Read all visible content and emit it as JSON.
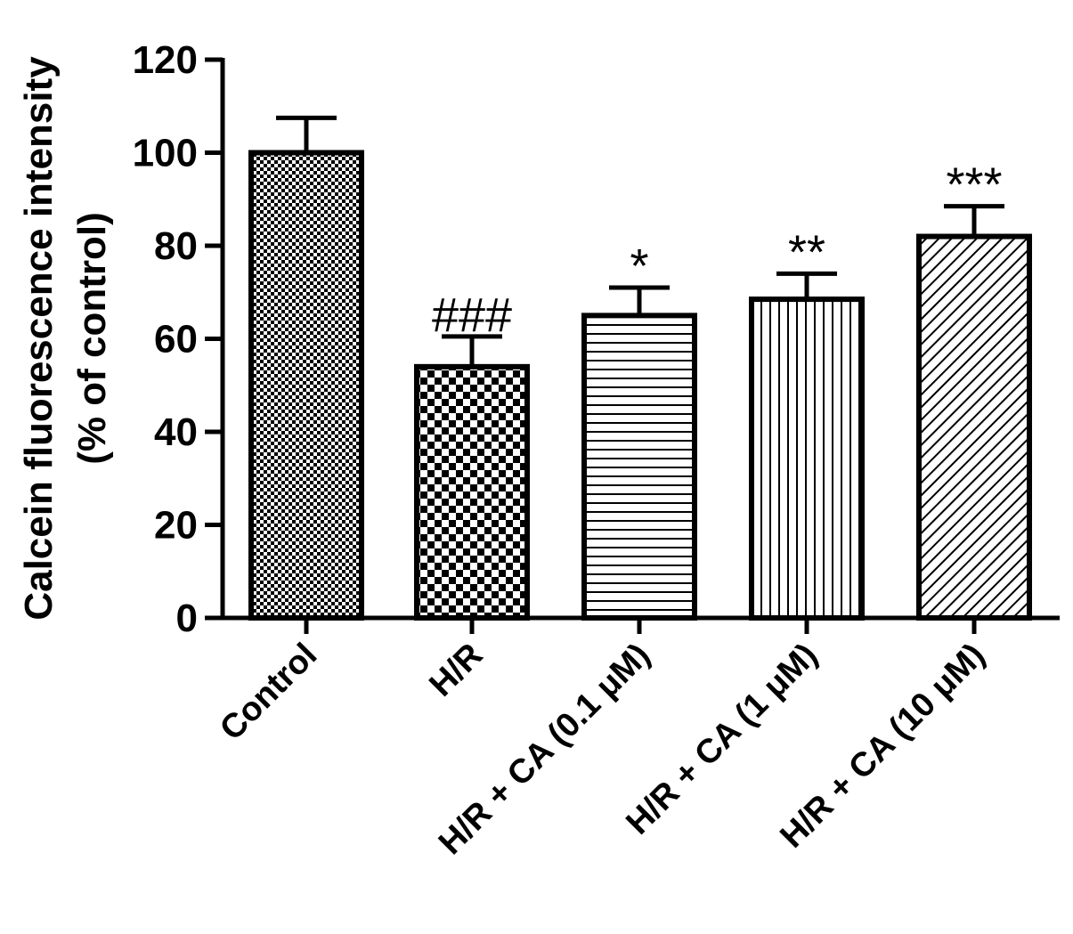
{
  "chart_data": {
    "type": "bar",
    "categories": [
      "Control",
      "H/R",
      "H/R + CA (0.1 μM)",
      "H/R + CA (1 μM)",
      "H/R + CA (10 μM)"
    ],
    "values": [
      100,
      54,
      65,
      68.5,
      82
    ],
    "errors": [
      7.5,
      6.5,
      6,
      5.5,
      6.5
    ],
    "annotations": [
      "",
      "###",
      "*",
      "**",
      "***"
    ],
    "patterns": [
      "fine-checker",
      "checker",
      "horizontal-lines",
      "vertical-lines",
      "diagonal-lines"
    ],
    "title": "",
    "xlabel": "",
    "ylabel_line1": "Calcein fluorescence intensity",
    "ylabel_line2": "(% of control)",
    "ylim": [
      0,
      120
    ],
    "yticks": [
      0,
      20,
      40,
      60,
      80,
      100,
      120
    ],
    "grid": false,
    "colors": {
      "bar_stroke": "#000000",
      "pattern": "#000000",
      "background": "#ffffff"
    }
  }
}
